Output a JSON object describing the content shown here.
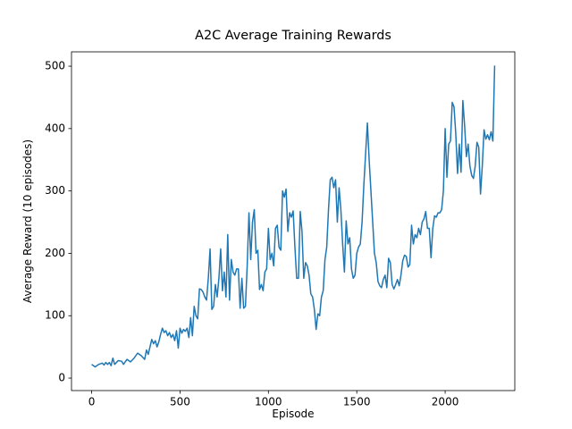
{
  "chart_data": {
    "type": "line",
    "title": "A2C Average Training Rewards",
    "x_label": "Episode",
    "y_label": "Average Reward (10 episodes)",
    "xlim": [
      -114,
      2394
    ],
    "ylim": [
      -20,
      523
    ],
    "xticks": [
      0,
      500,
      1000,
      1500,
      2000
    ],
    "yticks": [
      0,
      100,
      200,
      300,
      400,
      500
    ],
    "series": [
      {
        "color": "#1f77b4",
        "x": [
          0,
          10,
          20,
          40,
          60,
          70,
          80,
          90,
          100,
          110,
          120,
          130,
          150,
          170,
          180,
          200,
          220,
          240,
          260,
          280,
          300,
          310,
          320,
          330,
          340,
          350,
          360,
          370,
          380,
          390,
          400,
          410,
          420,
          430,
          440,
          450,
          460,
          470,
          480,
          490,
          500,
          510,
          520,
          530,
          540,
          550,
          560,
          570,
          580,
          590,
          600,
          610,
          620,
          630,
          640,
          650,
          660,
          670,
          680,
          690,
          700,
          710,
          720,
          730,
          740,
          750,
          760,
          770,
          780,
          790,
          800,
          810,
          820,
          830,
          840,
          850,
          860,
          870,
          880,
          890,
          900,
          910,
          920,
          930,
          940,
          950,
          960,
          970,
          980,
          990,
          1000,
          1010,
          1020,
          1030,
          1040,
          1050,
          1060,
          1070,
          1080,
          1090,
          1100,
          1110,
          1120,
          1130,
          1140,
          1150,
          1160,
          1170,
          1180,
          1190,
          1200,
          1210,
          1220,
          1230,
          1240,
          1250,
          1260,
          1270,
          1280,
          1290,
          1300,
          1310,
          1320,
          1330,
          1340,
          1350,
          1360,
          1370,
          1380,
          1390,
          1400,
          1410,
          1420,
          1430,
          1440,
          1450,
          1460,
          1470,
          1480,
          1490,
          1500,
          1510,
          1520,
          1530,
          1540,
          1550,
          1560,
          1570,
          1580,
          1590,
          1600,
          1610,
          1620,
          1630,
          1640,
          1650,
          1660,
          1670,
          1680,
          1690,
          1700,
          1710,
          1720,
          1730,
          1740,
          1750,
          1760,
          1770,
          1780,
          1790,
          1800,
          1810,
          1820,
          1830,
          1840,
          1850,
          1860,
          1870,
          1880,
          1890,
          1900,
          1910,
          1920,
          1930,
          1940,
          1950,
          1960,
          1970,
          1980,
          1990,
          2000,
          2010,
          2020,
          2030,
          2040,
          2050,
          2060,
          2070,
          2080,
          2090,
          2100,
          2110,
          2120,
          2130,
          2140,
          2150,
          2160,
          2170,
          2180,
          2190,
          2200,
          2210,
          2220,
          2230,
          2240,
          2250,
          2260,
          2270,
          2280
        ],
        "values": [
          22,
          20,
          18,
          22,
          24,
          21,
          25,
          22,
          25,
          20,
          32,
          22,
          28,
          27,
          22,
          30,
          26,
          32,
          40,
          36,
          30,
          45,
          38,
          50,
          62,
          55,
          60,
          50,
          58,
          70,
          80,
          73,
          76,
          68,
          73,
          65,
          70,
          60,
          76,
          48,
          80,
          72,
          78,
          75,
          80,
          65,
          97,
          68,
          115,
          100,
          95,
          143,
          142,
          138,
          130,
          125,
          160,
          207,
          110,
          115,
          150,
          130,
          160,
          207,
          140,
          170,
          130,
          230,
          125,
          190,
          170,
          165,
          175,
          175,
          112,
          160,
          112,
          115,
          180,
          265,
          190,
          250,
          270,
          200,
          205,
          142,
          150,
          140,
          170,
          175,
          240,
          190,
          200,
          180,
          240,
          245,
          210,
          205,
          300,
          290,
          303,
          235,
          265,
          258,
          268,
          210,
          160,
          160,
          267,
          235,
          160,
          185,
          180,
          165,
          135,
          130,
          110,
          78,
          103,
          100,
          130,
          140,
          190,
          210,
          270,
          318,
          322,
          305,
          318,
          250,
          305,
          270,
          215,
          170,
          252,
          215,
          225,
          175,
          160,
          165,
          200,
          210,
          215,
          250,
          310,
          360,
          409,
          350,
          300,
          250,
          200,
          185,
          155,
          148,
          145,
          158,
          165,
          145,
          192,
          185,
          150,
          143,
          150,
          158,
          148,
          165,
          188,
          197,
          195,
          178,
          182,
          245,
          215,
          230,
          225,
          240,
          230,
          250,
          255,
          267,
          240,
          240,
          193,
          240,
          260,
          258,
          265,
          265,
          270,
          300,
          400,
          322,
          375,
          380,
          442,
          435,
          392,
          328,
          375,
          330,
          445,
          405,
          355,
          375,
          340,
          325,
          320,
          340,
          378,
          370,
          295,
          340,
          398,
          383,
          390,
          382,
          395,
          380,
          501
        ]
      }
    ]
  }
}
